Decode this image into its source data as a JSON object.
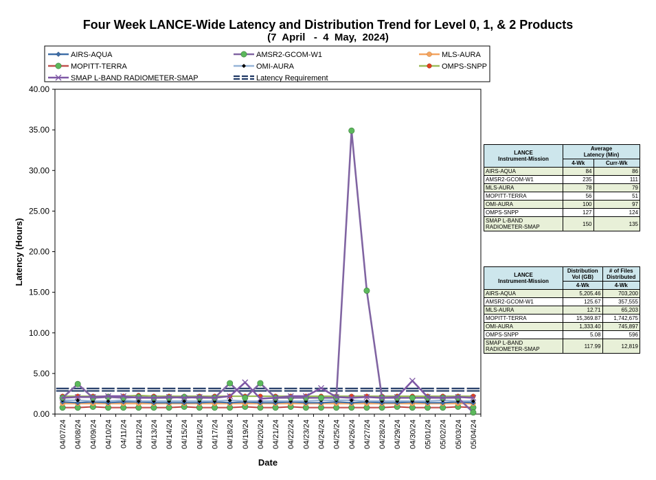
{
  "chart_data": {
    "type": "line",
    "title": "Four Week LANCE-Wide Latency and Distribution Trend for Level 0, 1, & 2 Products",
    "subtitle": "(7  April   -  4  May,  2024)",
    "xlabel": "Date",
    "ylabel": "Latency (Hours)",
    "ylim": [
      0,
      40
    ],
    "yticks": [
      "0.00",
      "5.00",
      "10.00",
      "15.00",
      "20.00",
      "25.00",
      "30.00",
      "35.00",
      "40.00"
    ],
    "legend_position": "top",
    "categories": [
      "04/07/24",
      "04/08/24",
      "04/09/24",
      "04/10/24",
      "04/11/24",
      "04/12/24",
      "04/13/24",
      "04/14/24",
      "04/15/24",
      "04/16/24",
      "04/17/24",
      "04/18/24",
      "04/19/24",
      "04/20/24",
      "04/21/24",
      "04/22/24",
      "04/23/24",
      "04/24/24",
      "04/25/24",
      "04/26/24",
      "04/27/24",
      "04/28/24",
      "04/29/24",
      "04/30/24",
      "05/01/24",
      "05/02/24",
      "05/03/24",
      "05/04/24"
    ],
    "series": [
      {
        "name": "AIRS-AQUA",
        "color": "#3f6fa8",
        "marker": "diamond",
        "values": [
          1.5,
          1.4,
          1.5,
          1.4,
          1.5,
          1.5,
          1.4,
          1.4,
          1.4,
          1.4,
          1.5,
          1.4,
          1.5,
          1.4,
          1.4,
          1.5,
          1.4,
          1.4,
          1.5,
          1.4,
          1.5,
          1.4,
          1.4,
          1.5,
          1.4,
          1.4,
          1.5,
          1.4
        ]
      },
      {
        "name": "AMSR2-GCOM-W1",
        "color": "#8064a2",
        "marker": "circle-green",
        "values": [
          2.0,
          3.7,
          2.0,
          2.1,
          2.0,
          2.1,
          2.0,
          2.0,
          2.1,
          2.0,
          2.0,
          3.8,
          2.0,
          3.8,
          2.0,
          2.0,
          2.0,
          2.0,
          2.0,
          34.9,
          15.2,
          2.0,
          2.0,
          2.0,
          2.0,
          2.0,
          2.0,
          0.2
        ]
      },
      {
        "name": "MLS-AURA",
        "color": "#f4a460",
        "marker": "circle-orange",
        "values": [
          1.3,
          1.3,
          1.3,
          1.3,
          1.3,
          1.3,
          1.3,
          1.3,
          1.3,
          1.3,
          1.3,
          1.3,
          1.3,
          1.3,
          1.3,
          1.3,
          1.3,
          1.3,
          1.3,
          1.3,
          1.3,
          1.3,
          1.3,
          1.3,
          1.3,
          1.3,
          1.3,
          1.3
        ]
      },
      {
        "name": "MOPITT-TERRA",
        "color": "#c0504d",
        "marker": "circle-green",
        "values": [
          0.8,
          0.8,
          0.9,
          0.8,
          0.8,
          0.8,
          0.8,
          0.8,
          0.9,
          0.8,
          0.8,
          0.8,
          0.9,
          0.8,
          0.8,
          0.9,
          0.8,
          0.8,
          0.8,
          0.8,
          0.8,
          0.8,
          0.9,
          0.8,
          0.8,
          0.8,
          0.9,
          0.8
        ]
      },
      {
        "name": "OMI-AURA",
        "color": "#95b3d7",
        "marker": "diamond-black",
        "values": [
          1.7,
          1.7,
          1.6,
          1.6,
          1.7,
          1.6,
          1.6,
          1.6,
          1.6,
          1.6,
          1.6,
          1.7,
          1.6,
          1.6,
          1.6,
          1.6,
          1.6,
          1.7,
          1.7,
          1.7,
          1.6,
          1.6,
          1.6,
          1.6,
          1.6,
          1.7,
          1.6,
          1.6
        ]
      },
      {
        "name": "OMPS-SNPP",
        "color": "#9bbb59",
        "marker": "circle-red",
        "values": [
          2.2,
          2.2,
          2.2,
          2.2,
          2.2,
          2.3,
          2.2,
          2.2,
          2.2,
          2.2,
          2.2,
          2.2,
          2.2,
          2.2,
          2.2,
          2.2,
          2.2,
          2.2,
          2.2,
          2.2,
          2.2,
          2.2,
          2.2,
          2.2,
          2.2,
          2.2,
          2.2,
          2.2
        ]
      },
      {
        "name": "SMAP L-BAND RADIOMETER-SMAP",
        "color": "#7e57a5",
        "marker": "x",
        "values": [
          2.0,
          2.1,
          2.1,
          2.2,
          2.2,
          2.0,
          2.0,
          2.1,
          2.0,
          2.1,
          2.0,
          2.2,
          3.9,
          1.9,
          2.0,
          2.2,
          2.2,
          3.2,
          2.1,
          2.0,
          2.1,
          2.0,
          2.1,
          4.1,
          2.1,
          2.0,
          2.1,
          2.0
        ]
      },
      {
        "name": "Latency Requirement",
        "color": "#1f3864",
        "marker": "dash",
        "values": [
          3,
          3,
          3,
          3,
          3,
          3,
          3,
          3,
          3,
          3,
          3,
          3,
          3,
          3,
          3,
          3,
          3,
          3,
          3,
          3,
          3,
          3,
          3,
          3,
          3,
          3,
          3,
          3
        ]
      }
    ]
  },
  "latency_table": {
    "header": [
      "LANCE\nInstrument-Mission",
      "Average\nLatency (Min)"
    ],
    "subheader": [
      "4-Wk",
      "Curr-Wk"
    ],
    "rows": [
      [
        "AIRS-AQUA",
        "84",
        "86"
      ],
      [
        "AMSR2-GCOM-W1",
        "235",
        "111"
      ],
      [
        "MLS-AURA",
        "78",
        "79"
      ],
      [
        "MOPITT-TERRA",
        "56",
        "51"
      ],
      [
        "OMI-AURA",
        "100",
        "97"
      ],
      [
        "OMPS-SNPP",
        "127",
        "124"
      ],
      [
        "SMAP L-BAND RADIOMETER-SMAP",
        "150",
        "135"
      ]
    ]
  },
  "distribution_table": {
    "header": [
      "LANCE\nInstrument-Mission",
      "Distribution\nVol (GB)",
      "# of Files\nDistributed"
    ],
    "subheader": [
      "4-Wk",
      "4-Wk"
    ],
    "rows": [
      [
        "AIRS-AQUA",
        "5,205.46",
        "703,200"
      ],
      [
        "AMSR2-GCOM-W1",
        "125.67",
        "357,555"
      ],
      [
        "MLS-AURA",
        "12.71",
        "65,203"
      ],
      [
        "MOPITT-TERRA",
        "15,369.87",
        "1,742,675"
      ],
      [
        "OMI-AURA",
        "1,333.40",
        "745,897"
      ],
      [
        "OMPS-SNPP",
        "5.08",
        "596"
      ],
      [
        "SMAP L-BAND RADIOMETER-SMAP",
        "117.99",
        "12,819"
      ]
    ]
  }
}
